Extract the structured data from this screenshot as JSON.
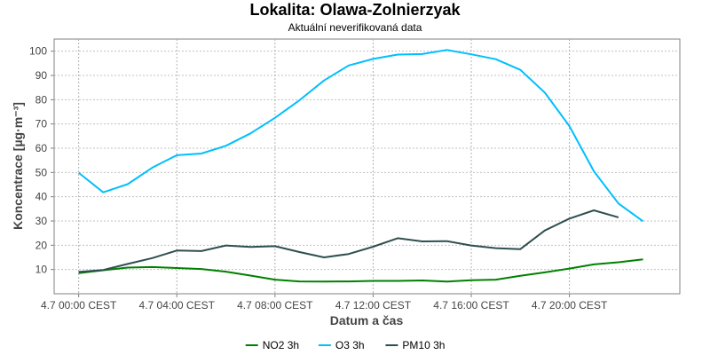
{
  "chart_data": {
    "type": "line",
    "title": "Lokalita: Olawa-Zolnierzyak",
    "subtitle": "Aktuální neverifikovaná data",
    "xlabel": "Datum a čas",
    "ylabel": "Koncentrace [µg·m⁻³]",
    "x_tick_labels": [
      "4.7 00:00 CEST",
      "4.7 04:00 CEST",
      "4.7 08:00 CEST",
      "4.7 12:00 CEST",
      "4.7 16:00 CEST",
      "4.7 20:00 CEST"
    ],
    "y_ticks": [
      10,
      20,
      30,
      40,
      50,
      60,
      70,
      80,
      90,
      100
    ],
    "xlim": [
      -1,
      24.5
    ],
    "ylim": [
      0,
      105
    ],
    "grid": true,
    "legend_position": "bottom",
    "series": [
      {
        "name": "NO2 3h",
        "color": "#008000",
        "points": [
          [
            0,
            8.5
          ],
          [
            1,
            9.7
          ],
          [
            2,
            10.8
          ],
          [
            3,
            11
          ],
          [
            4,
            10.6
          ],
          [
            5,
            10.2
          ],
          [
            6,
            9.1
          ],
          [
            7,
            7.5
          ],
          [
            8,
            5.8
          ],
          [
            9,
            5.1
          ],
          [
            10,
            5
          ],
          [
            11,
            5.1
          ],
          [
            12,
            5.3
          ],
          [
            13,
            5.3
          ],
          [
            14,
            5.5
          ],
          [
            15,
            5
          ],
          [
            16,
            5.6
          ],
          [
            17,
            5.8
          ],
          [
            18,
            7.4
          ],
          [
            19,
            8.8
          ],
          [
            20,
            10.4
          ],
          [
            21,
            12.1
          ],
          [
            22,
            13
          ],
          [
            23,
            14.2
          ]
        ]
      },
      {
        "name": "O3 3h",
        "color": "#00bfff",
        "points": [
          [
            0,
            49.9
          ],
          [
            1,
            41.8
          ],
          [
            2,
            45.2
          ],
          [
            3,
            52
          ],
          [
            4,
            57.1
          ],
          [
            5,
            57.8
          ],
          [
            6,
            61
          ],
          [
            7,
            66.1
          ],
          [
            8,
            72.5
          ],
          [
            9,
            79.8
          ],
          [
            10,
            87.9
          ],
          [
            11,
            94.1
          ],
          [
            12,
            96.8
          ],
          [
            13,
            98.6
          ],
          [
            14,
            98.8
          ],
          [
            15,
            100.5
          ],
          [
            16,
            98.7
          ],
          [
            17,
            96.7
          ],
          [
            18,
            92.3
          ],
          [
            19,
            82.9
          ],
          [
            20,
            69.1
          ],
          [
            21,
            50.5
          ],
          [
            22,
            37.2
          ],
          [
            23,
            29.9
          ]
        ]
      },
      {
        "name": "PM10 3h",
        "color": "#2f4f4f",
        "points": [
          [
            0,
            9
          ],
          [
            1,
            9.8
          ],
          [
            2,
            12.3
          ],
          [
            3,
            14.7
          ],
          [
            4,
            17.8
          ],
          [
            5,
            17.6
          ],
          [
            6,
            19.9
          ],
          [
            7,
            19.3
          ],
          [
            8,
            19.6
          ],
          [
            9,
            17.2
          ],
          [
            10,
            15
          ],
          [
            11,
            16.4
          ],
          [
            12,
            19.4
          ],
          [
            13,
            22.9
          ],
          [
            14,
            21.6
          ],
          [
            15,
            21.7
          ],
          [
            16,
            19.9
          ],
          [
            17,
            18.8
          ],
          [
            18,
            18.4
          ],
          [
            19,
            26.1
          ],
          [
            20,
            31
          ],
          [
            21,
            34.4
          ],
          [
            22,
            31.5
          ]
        ]
      }
    ]
  }
}
